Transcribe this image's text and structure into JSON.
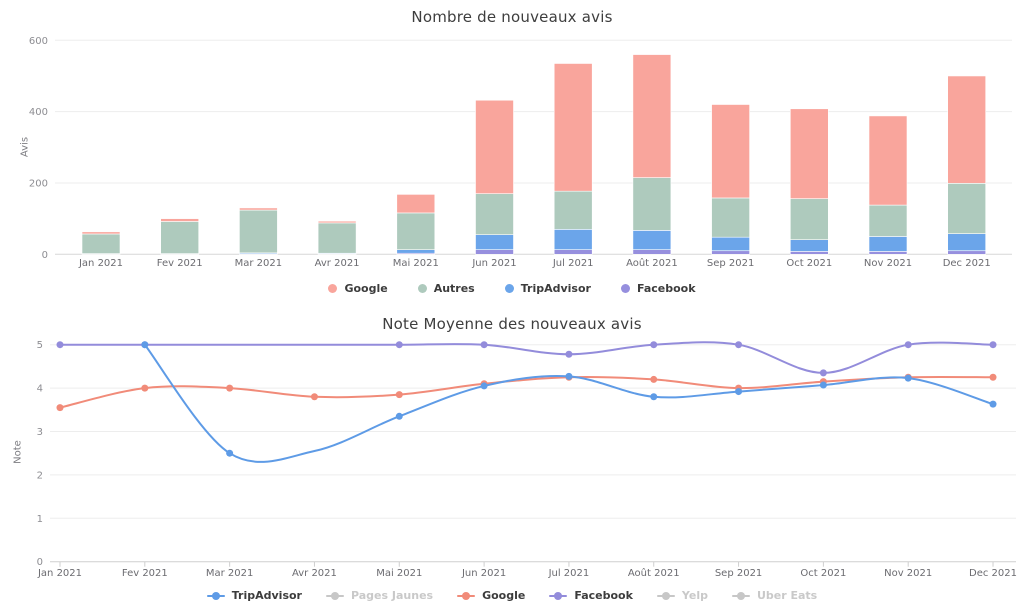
{
  "chart_data": [
    {
      "type": "bar",
      "stacked": true,
      "title": "Nombre de nouveaux avis",
      "xlabel": "",
      "ylabel": "Avis",
      "ylim": [
        0,
        600
      ],
      "yticks": [
        0,
        200,
        400,
        600
      ],
      "grid": true,
      "legend_position": "bottom",
      "categories": [
        "Jan 2021",
        "Fev 2021",
        "Mar 2021",
        "Avr 2021",
        "Mai 2021",
        "Jun 2021",
        "Jul 2021",
        "Août 2021",
        "Sep 2021",
        "Oct 2021",
        "Nov 2021",
        "Dec 2021"
      ],
      "series": [
        {
          "name": "Facebook",
          "color": "#968fde",
          "values": [
            0,
            0,
            1,
            1,
            3,
            13,
            13,
            13,
            10,
            8,
            8,
            10
          ]
        },
        {
          "name": "TripAdvisor",
          "color": "#6ba5ea",
          "values": [
            2,
            2,
            3,
            2,
            10,
            42,
            57,
            54,
            38,
            33,
            42,
            48
          ]
        },
        {
          "name": "Autres",
          "color": "#aecabd",
          "values": [
            55,
            90,
            120,
            85,
            103,
            115,
            107,
            148,
            110,
            115,
            88,
            141
          ]
        },
        {
          "name": "Google",
          "color": "#f9a59c",
          "values": [
            6,
            8,
            6,
            5,
            52,
            262,
            358,
            345,
            262,
            252,
            250,
            301
          ]
        }
      ],
      "legend_order": [
        "Google",
        "Autres",
        "TripAdvisor",
        "Facebook"
      ]
    },
    {
      "type": "line",
      "title": "Note Moyenne des nouveaux avis",
      "xlabel": "",
      "ylabel": "Note",
      "ylim": [
        0,
        5
      ],
      "yticks": [
        0,
        1,
        2,
        3,
        4,
        5
      ],
      "grid": true,
      "legend_position": "bottom",
      "categories": [
        "Jan 2021",
        "Fev 2021",
        "Mar 2021",
        "Avr 2021",
        "Mai 2021",
        "Jun 2021",
        "Jul 2021",
        "Août 2021",
        "Sep 2021",
        "Oct 2021",
        "Nov 2021",
        "Dec 2021"
      ],
      "series": [
        {
          "name": "Google",
          "color": "#f18b79",
          "values": [
            3.55,
            4.0,
            4.0,
            3.8,
            3.85,
            4.1,
            4.25,
            4.2,
            4.0,
            4.15,
            4.25,
            4.25
          ],
          "no_marker_indices": []
        },
        {
          "name": "Facebook",
          "color": "#938cdb",
          "values": [
            5,
            5,
            5,
            5,
            5,
            5,
            4.78,
            5,
            5,
            4.35,
            5,
            5
          ],
          "no_marker_indices": [
            2,
            3
          ]
        },
        {
          "name": "TripAdvisor",
          "color": "#5e9be6",
          "values": [
            null,
            5,
            2.5,
            2.55,
            3.35,
            4.05,
            4.27,
            3.8,
            3.92,
            4.07,
            4.23,
            3.63
          ],
          "no_marker_indices": [
            3
          ]
        }
      ],
      "legend": [
        {
          "label": "TripAdvisor",
          "color": "#5e9be6",
          "active": true
        },
        {
          "label": "Pages Jaunes",
          "color": "#c7c7c7",
          "active": false
        },
        {
          "label": "Google",
          "color": "#f18b79",
          "active": true
        },
        {
          "label": "Facebook",
          "color": "#938cdb",
          "active": true
        },
        {
          "label": "Yelp",
          "color": "#c7c7c7",
          "active": false
        },
        {
          "label": "Uber Eats",
          "color": "#c7c7c7",
          "active": false
        }
      ]
    }
  ],
  "colors": {
    "grid_line": "#ededed",
    "axis_line": "#d7d7d7",
    "tick_label": "#8d8d92",
    "category_label": "#6b6b70",
    "title_text": "#3e3e3e",
    "inactive_legend": "#c9c9c9"
  }
}
